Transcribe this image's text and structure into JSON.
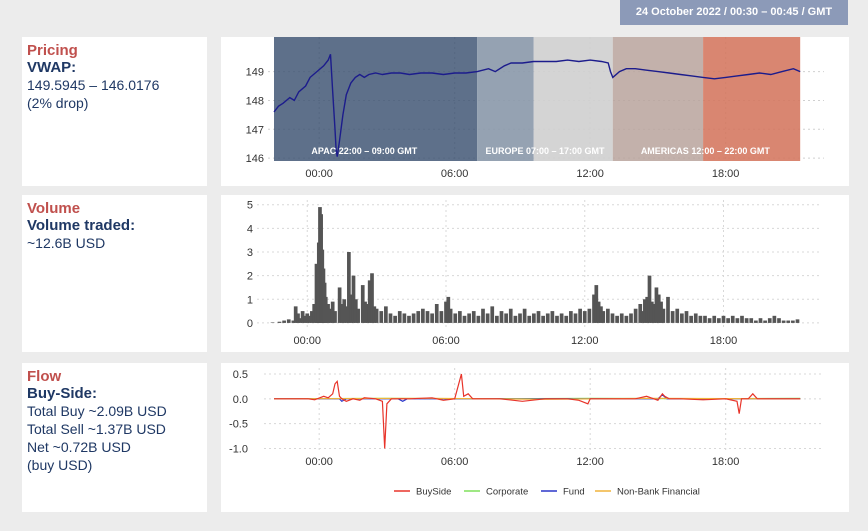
{
  "header": {
    "date_range": "24 October 2022 / 00:30 – 00:45 / GMT"
  },
  "pricing": {
    "title": "Pricing",
    "subtitle": "VWAP:",
    "range": "149.5945 – 146.0176",
    "note": "(2% drop)"
  },
  "volume": {
    "title": "Volume",
    "subtitle": "Volume traded:",
    "value": "~12.6B USD"
  },
  "flow": {
    "title": "Flow",
    "subtitle": "Buy-Side:",
    "total_buy": "Total Buy ~2.09B USD",
    "total_sell": "Total Sell ~1.37B USD",
    "net": "Net ~0.72B USD",
    "net_note": "(buy USD)"
  },
  "colors": {
    "apac": "#3b5070",
    "europe_overlap": "#8a98aa",
    "europe": "#cfcfcf",
    "americas_overlap": "#b8a39c",
    "americas": "#d4755d",
    "buyside": "#e8342a",
    "corporate": "#7fe05a",
    "fund": "#2b36c9",
    "nonbank": "#f0b23a",
    "bars": "#555555"
  },
  "chart_data": [
    {
      "type": "line",
      "name": "pricing",
      "x_ticks": [
        "00:00",
        "06:00",
        "12:00",
        "18:00"
      ],
      "y_ticks": [
        "146",
        "147",
        "148",
        "149"
      ],
      "xlim": [
        -2,
        22
      ],
      "ylim": [
        145.9,
        150.2
      ],
      "sessions": [
        {
          "label": "APAC 22:00 – 09:00 GMT",
          "start": -2,
          "end": 7
        },
        {
          "label": "EUROPE 07:00 – 17:00 GMT",
          "start": 7,
          "end": 13
        },
        {
          "label": "AMERICAS 12:00 – 22:00 GMT",
          "start": 13,
          "end": 21.3
        }
      ],
      "series": [
        {
          "values": [
            [
              -2,
              147.6
            ],
            [
              -1.8,
              147.8
            ],
            [
              -1.6,
              147.9
            ],
            [
              -1.3,
              148.1
            ],
            [
              -1.1,
              148.0
            ],
            [
              -0.9,
              148.3
            ],
            [
              -0.6,
              148.5
            ],
            [
              -0.4,
              148.8
            ],
            [
              -0.1,
              149.0
            ],
            [
              0.2,
              149.2
            ],
            [
              0.4,
              149.4
            ],
            [
              0.5,
              149.6
            ],
            [
              0.6,
              148.3
            ],
            [
              0.7,
              147.0
            ],
            [
              0.75,
              146.3
            ],
            [
              0.8,
              146.05
            ],
            [
              0.9,
              146.6
            ],
            [
              1.05,
              147.5
            ],
            [
              1.2,
              148.2
            ],
            [
              1.4,
              148.6
            ],
            [
              1.6,
              148.8
            ],
            [
              1.8,
              148.9
            ],
            [
              2.0,
              148.8
            ],
            [
              2.2,
              148.9
            ],
            [
              2.5,
              148.95
            ],
            [
              2.8,
              148.9
            ],
            [
              3.2,
              148.95
            ],
            [
              3.6,
              148.95
            ],
            [
              4.0,
              148.9
            ],
            [
              4.5,
              148.95
            ],
            [
              5,
              148.95
            ],
            [
              5.5,
              148.9
            ],
            [
              6,
              148.95
            ],
            [
              6.5,
              148.95
            ],
            [
              7,
              149.0
            ],
            [
              7.5,
              149.1
            ],
            [
              7.8,
              149.0
            ],
            [
              8.2,
              149.2
            ],
            [
              8.5,
              149.3
            ],
            [
              9,
              149.3
            ],
            [
              9.5,
              149.35
            ],
            [
              10,
              149.35
            ],
            [
              10.5,
              149.35
            ],
            [
              11,
              149.4
            ],
            [
              11.5,
              149.35
            ],
            [
              12,
              149.4
            ],
            [
              12.5,
              149.35
            ],
            [
              12.8,
              149.3
            ],
            [
              12.9,
              149.0
            ],
            [
              13,
              148.8
            ],
            [
              13.3,
              149.0
            ],
            [
              13.6,
              149.1
            ],
            [
              14,
              149.1
            ],
            [
              14.5,
              149.05
            ],
            [
              15,
              149.0
            ],
            [
              15.5,
              148.95
            ],
            [
              16,
              148.9
            ],
            [
              16.5,
              148.85
            ],
            [
              17,
              148.8
            ],
            [
              17.5,
              148.75
            ],
            [
              18,
              148.8
            ],
            [
              18.5,
              148.85
            ],
            [
              19,
              148.9
            ],
            [
              19.5,
              148.95
            ],
            [
              20,
              148.9
            ],
            [
              20.5,
              149.0
            ],
            [
              21,
              149.1
            ],
            [
              21.3,
              149.0
            ]
          ]
        }
      ]
    },
    {
      "type": "bar",
      "name": "volume",
      "x_ticks": [
        "00:00",
        "06:00",
        "12:00",
        "18:00"
      ],
      "y_ticks": [
        "0",
        "1",
        "2",
        "3",
        "4",
        "5"
      ],
      "xlim": [
        -2,
        22
      ],
      "ylim": [
        -0.3,
        5.2
      ],
      "values": [
        [
          -1.5,
          0.02
        ],
        [
          -1.2,
          0.05
        ],
        [
          -1.0,
          0.1
        ],
        [
          -0.8,
          0.15
        ],
        [
          -0.6,
          0.1
        ],
        [
          -0.5,
          0.7
        ],
        [
          -0.4,
          0.4
        ],
        [
          -0.3,
          0.2
        ],
        [
          -0.2,
          0.5
        ],
        [
          -0.1,
          0.3
        ],
        [
          0,
          0.4
        ],
        [
          0.1,
          0.3
        ],
        [
          0.2,
          0.5
        ],
        [
          0.3,
          0.8
        ],
        [
          0.4,
          2.5
        ],
        [
          0.45,
          1.3
        ],
        [
          0.5,
          3.4
        ],
        [
          0.55,
          4.9
        ],
        [
          0.6,
          4.6
        ],
        [
          0.65,
          3.1
        ],
        [
          0.7,
          2.3
        ],
        [
          0.75,
          1.7
        ],
        [
          0.8,
          1.1
        ],
        [
          0.9,
          0.8
        ],
        [
          1.0,
          0.6
        ],
        [
          1.1,
          0.9
        ],
        [
          1.2,
          0.5
        ],
        [
          1.4,
          1.5
        ],
        [
          1.5,
          0.8
        ],
        [
          1.6,
          1.0
        ],
        [
          1.7,
          0.7
        ],
        [
          1.8,
          3.0
        ],
        [
          1.9,
          1.2
        ],
        [
          2.0,
          2.0
        ],
        [
          2.1,
          1.0
        ],
        [
          2.2,
          0.6
        ],
        [
          2.4,
          1.6
        ],
        [
          2.5,
          0.9
        ],
        [
          2.6,
          0.8
        ],
        [
          2.7,
          1.8
        ],
        [
          2.8,
          2.1
        ],
        [
          2.9,
          0.7
        ],
        [
          3.0,
          0.6
        ],
        [
          3.2,
          0.5
        ],
        [
          3.4,
          0.7
        ],
        [
          3.6,
          0.4
        ],
        [
          3.8,
          0.3
        ],
        [
          4.0,
          0.5
        ],
        [
          4.2,
          0.4
        ],
        [
          4.4,
          0.3
        ],
        [
          4.6,
          0.4
        ],
        [
          4.8,
          0.5
        ],
        [
          5.0,
          0.6
        ],
        [
          5.2,
          0.5
        ],
        [
          5.4,
          0.4
        ],
        [
          5.6,
          0.8
        ],
        [
          5.8,
          0.5
        ],
        [
          6.0,
          0.9
        ],
        [
          6.1,
          1.1
        ],
        [
          6.2,
          0.6
        ],
        [
          6.4,
          0.4
        ],
        [
          6.6,
          0.5
        ],
        [
          6.8,
          0.3
        ],
        [
          7.0,
          0.4
        ],
        [
          7.2,
          0.5
        ],
        [
          7.4,
          0.3
        ],
        [
          7.6,
          0.6
        ],
        [
          7.8,
          0.4
        ],
        [
          8.0,
          0.7
        ],
        [
          8.2,
          0.3
        ],
        [
          8.4,
          0.5
        ],
        [
          8.6,
          0.4
        ],
        [
          8.8,
          0.6
        ],
        [
          9.0,
          0.3
        ],
        [
          9.2,
          0.4
        ],
        [
          9.4,
          0.6
        ],
        [
          9.6,
          0.3
        ],
        [
          9.8,
          0.4
        ],
        [
          10.0,
          0.5
        ],
        [
          10.2,
          0.3
        ],
        [
          10.4,
          0.4
        ],
        [
          10.6,
          0.5
        ],
        [
          10.8,
          0.3
        ],
        [
          11.0,
          0.4
        ],
        [
          11.2,
          0.3
        ],
        [
          11.4,
          0.5
        ],
        [
          11.6,
          0.4
        ],
        [
          11.8,
          0.6
        ],
        [
          12.0,
          0.5
        ],
        [
          12.2,
          0.6
        ],
        [
          12.4,
          1.2
        ],
        [
          12.5,
          1.6
        ],
        [
          12.6,
          0.9
        ],
        [
          12.7,
          0.7
        ],
        [
          12.8,
          0.5
        ],
        [
          13.0,
          0.6
        ],
        [
          13.2,
          0.4
        ],
        [
          13.4,
          0.3
        ],
        [
          13.6,
          0.4
        ],
        [
          13.8,
          0.3
        ],
        [
          14.0,
          0.4
        ],
        [
          14.2,
          0.6
        ],
        [
          14.4,
          0.8
        ],
        [
          14.5,
          0.5
        ],
        [
          14.6,
          1.0
        ],
        [
          14.7,
          1.1
        ],
        [
          14.8,
          2.0
        ],
        [
          14.9,
          0.9
        ],
        [
          15.0,
          0.8
        ],
        [
          15.1,
          1.5
        ],
        [
          15.2,
          1.2
        ],
        [
          15.3,
          0.9
        ],
        [
          15.4,
          0.6
        ],
        [
          15.6,
          1.1
        ],
        [
          15.8,
          0.5
        ],
        [
          16.0,
          0.6
        ],
        [
          16.2,
          0.4
        ],
        [
          16.4,
          0.5
        ],
        [
          16.6,
          0.3
        ],
        [
          16.8,
          0.4
        ],
        [
          17.0,
          0.3
        ],
        [
          17.2,
          0.3
        ],
        [
          17.4,
          0.2
        ],
        [
          17.6,
          0.3
        ],
        [
          17.8,
          0.2
        ],
        [
          18.0,
          0.3
        ],
        [
          18.2,
          0.2
        ],
        [
          18.4,
          0.3
        ],
        [
          18.6,
          0.2
        ],
        [
          18.8,
          0.3
        ],
        [
          19.0,
          0.2
        ],
        [
          19.2,
          0.2
        ],
        [
          19.4,
          0.1
        ],
        [
          19.6,
          0.2
        ],
        [
          19.8,
          0.1
        ],
        [
          20.0,
          0.2
        ],
        [
          20.2,
          0.3
        ],
        [
          20.4,
          0.2
        ],
        [
          20.6,
          0.1
        ],
        [
          20.8,
          0.1
        ],
        [
          21.0,
          0.1
        ],
        [
          21.2,
          0.15
        ]
      ]
    },
    {
      "type": "line",
      "name": "flow",
      "x_ticks": [
        "00:00",
        "06:00",
        "12:00",
        "18:00"
      ],
      "y_ticks": [
        "0.5",
        "0.0",
        "-0.5",
        "-1.0"
      ],
      "xlim": [
        -2,
        22
      ],
      "ylim": [
        -1.05,
        0.62
      ],
      "legend": [
        "BuySide",
        "Corporate",
        "Fund",
        "Non-Bank Financial"
      ],
      "legend_position": "bottom",
      "series": [
        {
          "name": "BuySide",
          "values": [
            [
              -2,
              0
            ],
            [
              -0.5,
              0
            ],
            [
              -0.2,
              -0.02
            ],
            [
              0.2,
              0.05
            ],
            [
              0.4,
              0.02
            ],
            [
              0.6,
              0.1
            ],
            [
              0.7,
              0.3
            ],
            [
              0.8,
              0.35
            ],
            [
              0.9,
              0.05
            ],
            [
              1.0,
              0
            ],
            [
              1.2,
              -0.05
            ],
            [
              1.5,
              0
            ],
            [
              1.8,
              -0.03
            ],
            [
              2.0,
              0.02
            ],
            [
              2.5,
              0
            ],
            [
              2.8,
              -0.05
            ],
            [
              2.9,
              -1.0
            ],
            [
              3.0,
              -0.1
            ],
            [
              3.2,
              0
            ],
            [
              4,
              0
            ],
            [
              5,
              0.02
            ],
            [
              5.5,
              -0.03
            ],
            [
              6,
              0
            ],
            [
              6.3,
              0.5
            ],
            [
              6.4,
              0.05
            ],
            [
              6.6,
              0.1
            ],
            [
              6.8,
              0.0
            ],
            [
              7,
              0
            ],
            [
              8,
              0
            ],
            [
              9,
              -0.05
            ],
            [
              10,
              0
            ],
            [
              11,
              0
            ],
            [
              11.5,
              -0.03
            ],
            [
              11.9,
              -0.1
            ],
            [
              12,
              0
            ],
            [
              13,
              0
            ],
            [
              14,
              0
            ],
            [
              14.5,
              0.05
            ],
            [
              15,
              -0.03
            ],
            [
              15.2,
              0.1
            ],
            [
              15.3,
              0.05
            ],
            [
              15.5,
              0
            ],
            [
              16,
              0
            ],
            [
              17,
              -0.02
            ],
            [
              18,
              0
            ],
            [
              18.5,
              -0.05
            ],
            [
              18.6,
              -0.3
            ],
            [
              18.7,
              0
            ],
            [
              19,
              0
            ],
            [
              19.2,
              0.1
            ],
            [
              19.4,
              0
            ],
            [
              20,
              0
            ],
            [
              21,
              0
            ],
            [
              21.3,
              0
            ]
          ]
        },
        {
          "name": "Corporate",
          "values": [
            [
              -2,
              0
            ],
            [
              3,
              0.01
            ],
            [
              7,
              0
            ],
            [
              12,
              0.01
            ],
            [
              17,
              0
            ],
            [
              21.3,
              0.01
            ]
          ]
        },
        {
          "name": "Fund",
          "values": [
            [
              -2,
              0
            ],
            [
              0.9,
              0
            ],
            [
              1.0,
              -0.05
            ],
            [
              1.2,
              0
            ],
            [
              3.5,
              0
            ],
            [
              3.7,
              -0.05
            ],
            [
              3.9,
              0
            ],
            [
              15,
              0
            ],
            [
              15.2,
              0.08
            ],
            [
              15.4,
              0
            ],
            [
              21.3,
              0
            ]
          ]
        },
        {
          "name": "Non-Bank Financial",
          "values": [
            [
              -2,
              0
            ],
            [
              5,
              0.01
            ],
            [
              10,
              -0.01
            ],
            [
              15,
              0.01
            ],
            [
              20,
              0
            ],
            [
              21.3,
              0
            ]
          ]
        }
      ]
    }
  ]
}
